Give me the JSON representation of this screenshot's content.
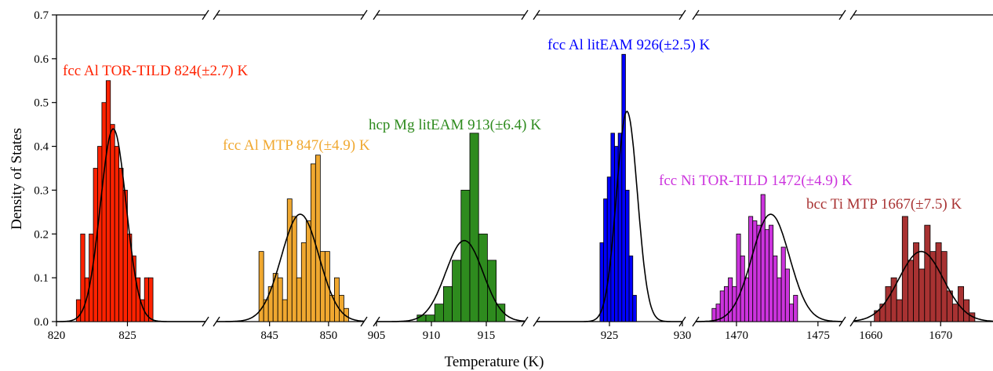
{
  "chart_data": {
    "type": "bar",
    "title": "",
    "xlabel": "Temperature (K)",
    "ylabel": "Density of States",
    "ylim": [
      0,
      0.7
    ],
    "yticks": [
      "0.0",
      "0.1",
      "0.2",
      "0.3",
      "0.4",
      "0.5",
      "0.6",
      "0.7"
    ],
    "grid": false,
    "legend": "none",
    "panels": [
      {
        "label": "fcc Al TOR-TILD 824(±2.7) K",
        "color": "#ff2200",
        "xlim": [
          820,
          830.5
        ],
        "xticks": [
          "820",
          "825"
        ],
        "mean": 824,
        "std": 0.91,
        "amplitude": 0.44,
        "bin_start": 821.4,
        "bin_width": 0.3,
        "heights": [
          0.05,
          0.2,
          0.1,
          0.2,
          0.35,
          0.4,
          0.5,
          0.55,
          0.45,
          0.4,
          0.35,
          0.3,
          0.2,
          0.15,
          0.1,
          0.05,
          0.1,
          0.1
        ]
      },
      {
        "label": "fcc Al MTP 847(±4.9) K",
        "color": "#f0a830",
        "xlim": [
          840.5,
          853
        ],
        "xticks": [
          "845",
          "850"
        ],
        "mean": 847.6,
        "std": 1.6,
        "amplitude": 0.245,
        "bin_start": 844.1,
        "bin_width": 0.4,
        "heights": [
          0.16,
          0.05,
          0.08,
          0.11,
          0.1,
          0.05,
          0.28,
          0.24,
          0.1,
          0.18,
          0.23,
          0.36,
          0.38,
          0.16,
          0.16,
          0.06,
          0.1,
          0.06,
          0.03
        ]
      },
      {
        "label": "hcp Mg litEAM 913(±6.4) K",
        "color": "#2e8b1e",
        "xlim": [
          905,
          918.5
        ],
        "xticks": [
          "905",
          "910",
          "915"
        ],
        "mean": 913,
        "std": 1.7,
        "amplitude": 0.185,
        "bin_start": 908.7,
        "bin_width": 0.8,
        "heights": [
          0.015,
          0.015,
          0.04,
          0.08,
          0.14,
          0.3,
          0.43,
          0.2,
          0.14,
          0.04
        ]
      },
      {
        "label": "fcc Al litEAM 926(±2.5) K",
        "color": "#0000ff",
        "xlim": [
          920,
          930
        ],
        "xticks": [
          "925",
          "930"
        ],
        "mean": 926.2,
        "std": 0.72,
        "amplitude": 0.48,
        "bin_start": 924.35,
        "bin_width": 0.25,
        "heights": [
          0.18,
          0.28,
          0.33,
          0.43,
          0.4,
          0.43,
          0.61,
          0.3,
          0.15,
          0.06
        ]
      },
      {
        "label": "fcc Ni TOR-TILD 1472(±4.9) K",
        "color": "#cc33dd",
        "xlim": [
          1467.5,
          1476.5
        ],
        "xticks": [
          "1470",
          "1475"
        ],
        "mean": 1472.1,
        "std": 1.15,
        "amplitude": 0.245,
        "bin_start": 1468.5,
        "bin_width": 0.25,
        "heights": [
          0.03,
          0.04,
          0.07,
          0.08,
          0.1,
          0.08,
          0.2,
          0.15,
          0.1,
          0.24,
          0.23,
          0.22,
          0.29,
          0.21,
          0.22,
          0.15,
          0.1,
          0.17,
          0.12,
          0.04,
          0.06
        ]
      },
      {
        "label": "bcc Ti MTP 1667(±7.5) K",
        "color": "#a83232",
        "xlim": [
          1657.5,
          1677.5
        ],
        "xticks": [
          "1660",
          "1670"
        ],
        "mean": 1667.2,
        "std": 3.2,
        "amplitude": 0.16,
        "bin_start": 1660.5,
        "bin_width": 0.8,
        "heights": [
          0.025,
          0.04,
          0.08,
          0.1,
          0.05,
          0.24,
          0.14,
          0.18,
          0.12,
          0.22,
          0.16,
          0.18,
          0.16,
          0.07,
          0.04,
          0.08,
          0.05,
          0.02
        ]
      }
    ]
  }
}
